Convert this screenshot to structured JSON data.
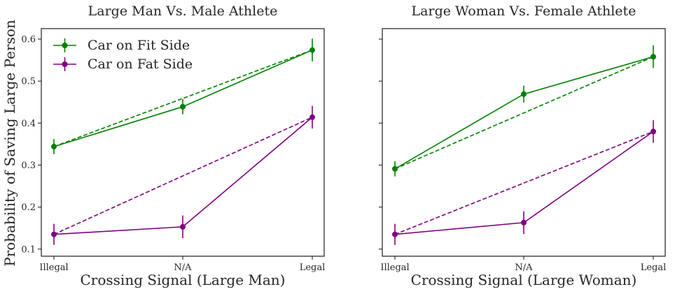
{
  "chart_data": {
    "type": "line",
    "ylabel": "Probability of Saving Large Person",
    "ylim": [
      0.083,
      0.625
    ],
    "yticks": [
      0.1,
      0.2,
      0.3,
      0.4,
      0.5,
      0.6
    ],
    "ytick_labels": [
      "0.1",
      "0.2",
      "0.3",
      "0.4",
      "0.5",
      "0.6"
    ],
    "categories": [
      "Illegal",
      "N/A",
      "Legal"
    ],
    "legend": {
      "location": "upper-left",
      "entries": [
        {
          "name": "Car on Fit Side",
          "color": "#008000"
        },
        {
          "name": "Car on Fat Side",
          "color": "#800080"
        }
      ]
    },
    "panels": [
      {
        "title": "Large Man Vs. Male Athlete",
        "xlabel": "Crossing Signal (Large Man)",
        "series": [
          {
            "name": "Car on Fit Side",
            "color": "#008000",
            "values": [
              0.344,
              0.439,
              0.574
            ],
            "errors": [
              0.018,
              0.018,
              0.027
            ]
          },
          {
            "name": "Car on Fat Side",
            "color": "#800080",
            "values": [
              0.135,
              0.153,
              0.414
            ],
            "errors": [
              0.025,
              0.027,
              0.027
            ]
          }
        ]
      },
      {
        "title": "Large Woman Vs. Female Athlete",
        "xlabel": "Crossing Signal (Large Woman)",
        "series": [
          {
            "name": "Car on Fit Side",
            "color": "#008000",
            "values": [
              0.291,
              0.469,
              0.558
            ],
            "errors": [
              0.018,
              0.02,
              0.027
            ]
          },
          {
            "name": "Car on Fat Side",
            "color": "#800080",
            "values": [
              0.135,
              0.163,
              0.38
            ],
            "errors": [
              0.025,
              0.027,
              0.027
            ]
          }
        ]
      }
    ]
  }
}
